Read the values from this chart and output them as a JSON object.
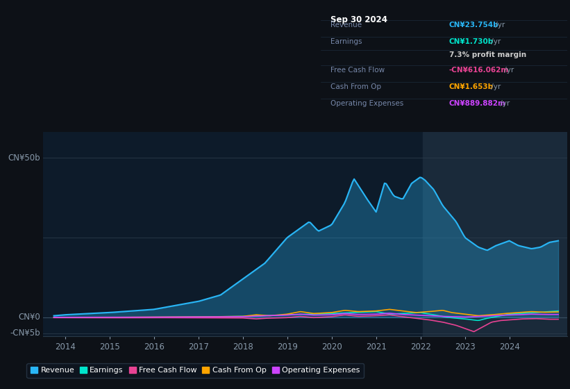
{
  "bg_color": "#0d1117",
  "plot_bg_color": "#0d1b2a",
  "highlight_bg_color": "#1a2a3a",
  "ylim": [
    -6000000000.0,
    58000000000.0
  ],
  "xlim_start": 2013.5,
  "xlim_end": 2025.3,
  "xticks": [
    2014,
    2015,
    2016,
    2017,
    2018,
    2019,
    2020,
    2021,
    2022,
    2023,
    2024
  ],
  "series_colors": {
    "revenue": "#29b6f6",
    "earnings": "#00e5cc",
    "fcf": "#e84393",
    "cashfromop": "#ffa500",
    "opex": "#cc44ff"
  },
  "legend_items": [
    {
      "label": "Revenue",
      "color": "#29b6f6"
    },
    {
      "label": "Earnings",
      "color": "#00e5cc"
    },
    {
      "label": "Free Cash Flow",
      "color": "#e84393"
    },
    {
      "label": "Cash From Op",
      "color": "#ffa500"
    },
    {
      "label": "Operating Expenses",
      "color": "#cc44ff"
    }
  ],
  "info_title": "Sep 30 2024",
  "info_rows": [
    {
      "label": "Revenue",
      "value": "CN¥23.754b /yr",
      "value_color": "#29b6f6"
    },
    {
      "label": "Earnings",
      "value": "CN¥1.730b /yr",
      "value_color": "#00e5cc"
    },
    {
      "label": "",
      "value": "7.3% profit margin",
      "value_color": "#cccccc"
    },
    {
      "label": "Free Cash Flow",
      "value": "-CN¥616.062m /yr",
      "value_color": "#e84393"
    },
    {
      "label": "Cash From Op",
      "value": "CN¥1.653b /yr",
      "value_color": "#ffa500"
    },
    {
      "label": "Operating Expenses",
      "value": "CN¥889.882m /yr",
      "value_color": "#cc44ff"
    }
  ]
}
